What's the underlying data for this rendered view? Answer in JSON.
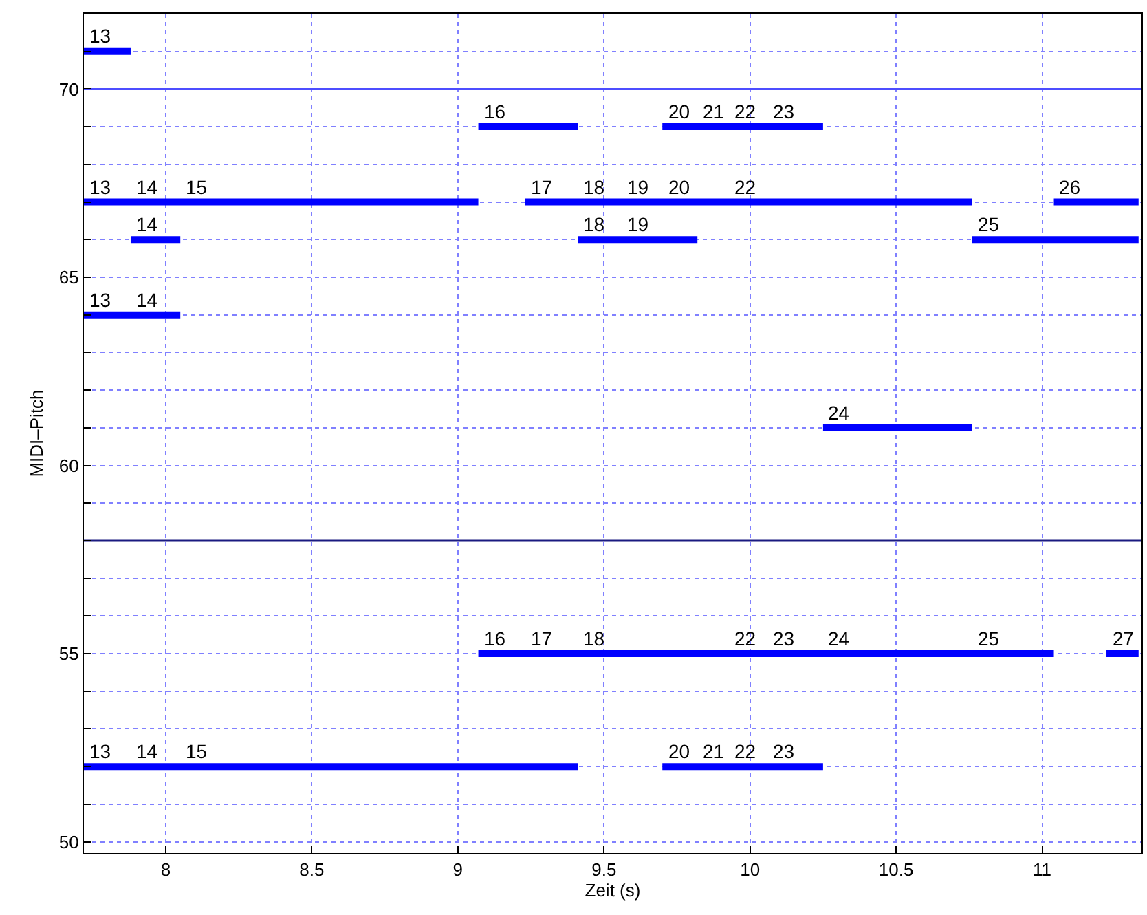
{
  "chart_data": {
    "type": "line",
    "xlabel": "Zeit (s)",
    "ylabel": "MIDI–Pitch",
    "xlim": [
      7.72,
      11.34
    ],
    "ylim": [
      49.7,
      72
    ],
    "xticks": [
      8,
      8.5,
      9,
      9.5,
      10,
      10.5,
      11
    ],
    "yticks": [
      50,
      {
        "value": 51,
        "label": null
      },
      {
        "value": 52,
        "label": null
      },
      {
        "value": 53,
        "label": null
      },
      {
        "value": 54,
        "label": null
      },
      55,
      {
        "value": 56,
        "label": null
      },
      {
        "value": 57,
        "label": null
      },
      {
        "value": 58,
        "label": null
      },
      {
        "value": 59,
        "label": null
      },
      60,
      {
        "value": 61,
        "label": null
      },
      {
        "value": 62,
        "label": null
      },
      {
        "value": 63,
        "label": null
      },
      {
        "value": 64,
        "label": null
      },
      65,
      {
        "value": 66,
        "label": null
      },
      {
        "value": 67,
        "label": null
      },
      {
        "value": 68,
        "label": null
      },
      {
        "value": 69,
        "label": null
      },
      70,
      {
        "value": 71,
        "label": null
      }
    ],
    "grid": true,
    "line_style": "solid",
    "ref_lines": [
      {
        "axis": "y",
        "value": 70,
        "color": "#4d4dff"
      },
      {
        "axis": "y",
        "value": 58,
        "color": "#1a1a80"
      }
    ],
    "series": [
      {
        "color": "#0000ff",
        "x": [
          7.72,
          7.88
        ],
        "values": [
          71,
          71
        ]
      },
      {
        "color": "#0000ff",
        "x": [
          9.07,
          9.41
        ],
        "values": [
          69,
          69
        ]
      },
      {
        "color": "#0000ff",
        "x": [
          9.7,
          9.82,
          9.93,
          10.06,
          10.25
        ],
        "values": [
          69,
          69,
          69,
          69,
          69
        ]
      },
      {
        "color": "#0000ff",
        "x": [
          7.72,
          7.88,
          8.05,
          9.07
        ],
        "values": [
          67,
          67,
          67,
          67
        ]
      },
      {
        "color": "#0000ff",
        "x": [
          9.23,
          9.41,
          9.56,
          9.7,
          9.93,
          10.76
        ],
        "values": [
          67,
          67,
          67,
          67,
          67,
          67
        ]
      },
      {
        "color": "#0000ff",
        "x": [
          11.04,
          11.33
        ],
        "values": [
          67,
          67
        ]
      },
      {
        "color": "#0000ff",
        "x": [
          7.88,
          8.05
        ],
        "values": [
          66,
          66
        ]
      },
      {
        "color": "#0000ff",
        "x": [
          9.41,
          9.56,
          9.82
        ],
        "values": [
          66,
          66,
          66
        ]
      },
      {
        "color": "#0000ff",
        "x": [
          10.76,
          11.33
        ],
        "values": [
          66,
          66
        ]
      },
      {
        "color": "#0000ff",
        "x": [
          7.72,
          7.88,
          8.05
        ],
        "values": [
          64,
          64,
          64
        ]
      },
      {
        "color": "#0000ff",
        "x": [
          10.25,
          10.76
        ],
        "values": [
          61,
          61
        ]
      },
      {
        "color": "#0000ff",
        "x": [
          9.07,
          9.23,
          9.41,
          9.93,
          10.06,
          10.25,
          10.76,
          11.04
        ],
        "values": [
          55,
          55,
          55,
          55,
          55,
          55,
          55,
          55
        ]
      },
      {
        "color": "#0000ff",
        "x": [
          11.22,
          11.33
        ],
        "values": [
          55,
          55
        ]
      },
      {
        "color": "#0000ff",
        "x": [
          7.72,
          7.88,
          8.05,
          9.41
        ],
        "values": [
          52,
          52,
          52,
          52
        ]
      },
      {
        "color": "#0000ff",
        "x": [
          9.7,
          9.82,
          9.93,
          10.06,
          10.25
        ],
        "values": [
          52,
          52,
          52,
          52,
          52
        ]
      }
    ],
    "annotations": [
      {
        "text": "13",
        "x": 7.72,
        "y": 71
      },
      {
        "text": "16",
        "x": 9.07,
        "y": 69
      },
      {
        "text": "20",
        "x": 9.7,
        "y": 69
      },
      {
        "text": "21",
        "x": 9.82,
        "y": 69
      },
      {
        "text": "22",
        "x": 9.93,
        "y": 69
      },
      {
        "text": "23",
        "x": 10.06,
        "y": 69
      },
      {
        "text": "13",
        "x": 7.72,
        "y": 67
      },
      {
        "text": "14",
        "x": 7.88,
        "y": 67
      },
      {
        "text": "15",
        "x": 8.05,
        "y": 67
      },
      {
        "text": "17",
        "x": 9.23,
        "y": 67
      },
      {
        "text": "18",
        "x": 9.41,
        "y": 67
      },
      {
        "text": "19",
        "x": 9.56,
        "y": 67
      },
      {
        "text": "20",
        "x": 9.7,
        "y": 67
      },
      {
        "text": "22",
        "x": 9.93,
        "y": 67
      },
      {
        "text": "26",
        "x": 11.04,
        "y": 67
      },
      {
        "text": "14",
        "x": 7.88,
        "y": 66
      },
      {
        "text": "18",
        "x": 9.41,
        "y": 66
      },
      {
        "text": "19",
        "x": 9.56,
        "y": 66
      },
      {
        "text": "25",
        "x": 10.76,
        "y": 66
      },
      {
        "text": "13",
        "x": 7.72,
        "y": 64
      },
      {
        "text": "14",
        "x": 7.88,
        "y": 64
      },
      {
        "text": "24",
        "x": 10.25,
        "y": 61
      },
      {
        "text": "16",
        "x": 9.07,
        "y": 55
      },
      {
        "text": "17",
        "x": 9.23,
        "y": 55
      },
      {
        "text": "18",
        "x": 9.41,
        "y": 55
      },
      {
        "text": "22",
        "x": 9.93,
        "y": 55
      },
      {
        "text": "23",
        "x": 10.06,
        "y": 55
      },
      {
        "text": "24",
        "x": 10.25,
        "y": 55
      },
      {
        "text": "25",
        "x": 10.76,
        "y": 55
      },
      {
        "text": "27",
        "x": 11.22,
        "y": 55
      },
      {
        "text": "13",
        "x": 7.72,
        "y": 52
      },
      {
        "text": "14",
        "x": 7.88,
        "y": 52
      },
      {
        "text": "15",
        "x": 8.05,
        "y": 52
      },
      {
        "text": "20",
        "x": 9.7,
        "y": 52
      },
      {
        "text": "21",
        "x": 9.82,
        "y": 52
      },
      {
        "text": "22",
        "x": 9.93,
        "y": 52
      },
      {
        "text": "23",
        "x": 10.06,
        "y": 52
      }
    ]
  }
}
